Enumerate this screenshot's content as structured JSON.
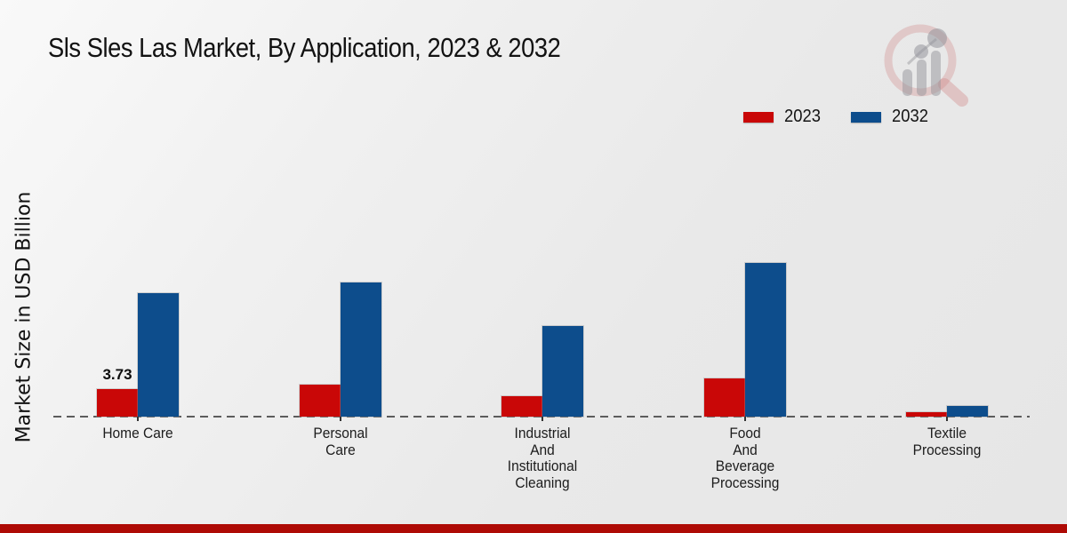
{
  "title": "Sls Sles Las Market, By Application, 2023 & 2032",
  "ylabel": "Market Size in USD Billion",
  "legend": {
    "items": [
      {
        "label": "2023",
        "color": "#c90707"
      },
      {
        "label": "2032",
        "color": "#0d4d8c"
      }
    ]
  },
  "logo": {
    "name": "market-research-future-watermark"
  },
  "footer": {
    "bar_color": "#ae0a05"
  },
  "colors": {
    "series_2023": "#c90707",
    "series_2032": "#0d4d8c",
    "baseline": "#5c5c5c",
    "background": "#ececec",
    "footer_strip": "#ae0a05"
  },
  "chart_data": {
    "type": "bar",
    "title": "Sls Sles Las Market, By Application, 2023 & 2032",
    "xlabel": "",
    "ylabel": "Market Size in USD Billion",
    "categories": [
      "Home Care",
      "Personal Care",
      "Industrial And Institutional Cleaning",
      "Food And Beverage Processing",
      "Textile Processing"
    ],
    "category_label_lines": [
      [
        "Home Care"
      ],
      [
        "Personal",
        "Care"
      ],
      [
        "Industrial",
        "And",
        "Institutional",
        "Cleaning"
      ],
      [
        "Food",
        "And",
        "Beverage",
        "Processing"
      ],
      [
        "Textile",
        "Processing"
      ]
    ],
    "series": [
      {
        "name": "2023",
        "color": "#c90707",
        "values": [
          3.73,
          4.3,
          2.8,
          5.2,
          0.55
        ]
      },
      {
        "name": "2032",
        "color": "#0d4d8c",
        "values": [
          16.7,
          18.2,
          12.2,
          20.8,
          1.45
        ]
      }
    ],
    "data_labels": [
      {
        "series": "2023",
        "category_index": 0,
        "text": "3.73"
      }
    ],
    "ylim": [
      0,
      22
    ],
    "grid": false,
    "legend_position": "top-right",
    "baseline_style": "dashed",
    "y_axis_ticks_visible": false
  }
}
